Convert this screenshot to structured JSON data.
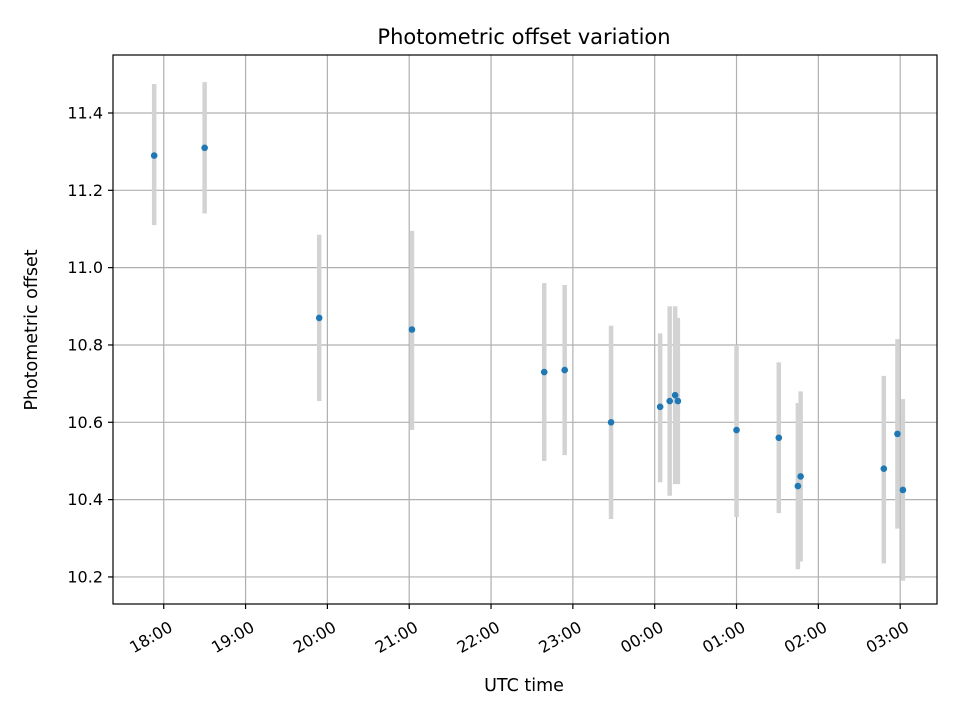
{
  "chart_data": {
    "type": "scatter",
    "title": "Photometric offset variation",
    "xlabel": "UTC time",
    "ylabel": "Photometric offset",
    "x_unit": "hours since 17:00 UTC",
    "xlim": [
      0.38,
      10.45
    ],
    "ylim": [
      10.13,
      11.55
    ],
    "xticks": [
      1,
      2,
      3,
      4,
      5,
      6,
      7,
      8,
      9,
      10
    ],
    "xtick_labels": [
      "18:00",
      "19:00",
      "20:00",
      "21:00",
      "22:00",
      "23:00",
      "00:00",
      "01:00",
      "02:00",
      "03:00"
    ],
    "yticks": [
      10.2,
      10.4,
      10.6,
      10.8,
      11.0,
      11.2,
      11.4
    ],
    "ytick_labels": [
      "10.2",
      "10.4",
      "10.6",
      "10.8",
      "11.0",
      "11.2",
      "11.4"
    ],
    "grid": true,
    "colors": {
      "point": "#1f77b4",
      "errorbar": "#d3d3d3",
      "grid": "#b0b0b0"
    },
    "points": [
      {
        "time": "17:53",
        "y": 11.29,
        "yerr_low": 11.11,
        "yerr_high": 11.475
      },
      {
        "time": "18:30",
        "y": 11.31,
        "yerr_low": 11.14,
        "yerr_high": 11.48
      },
      {
        "time": "19:54",
        "y": 10.87,
        "yerr_low": 10.655,
        "yerr_high": 11.085
      },
      {
        "time": "21:02",
        "y": 10.84,
        "yerr_low": 10.58,
        "yerr_high": 11.095
      },
      {
        "time": "22:39",
        "y": 10.73,
        "yerr_low": 10.5,
        "yerr_high": 10.96
      },
      {
        "time": "22:54",
        "y": 10.735,
        "yerr_low": 10.515,
        "yerr_high": 10.955
      },
      {
        "time": "23:28",
        "y": 10.6,
        "yerr_low": 10.35,
        "yerr_high": 10.85
      },
      {
        "time": "00:04",
        "y": 10.64,
        "yerr_low": 10.445,
        "yerr_high": 10.83
      },
      {
        "time": "00:11",
        "y": 10.655,
        "yerr_low": 10.41,
        "yerr_high": 10.9
      },
      {
        "time": "00:15",
        "y": 10.67,
        "yerr_low": 10.44,
        "yerr_high": 10.9
      },
      {
        "time": "00:17",
        "y": 10.655,
        "yerr_low": 10.44,
        "yerr_high": 10.87
      },
      {
        "time": "01:00",
        "y": 10.58,
        "yerr_low": 10.355,
        "yerr_high": 10.8
      },
      {
        "time": "01:31",
        "y": 10.56,
        "yerr_low": 10.365,
        "yerr_high": 10.755
      },
      {
        "time": "01:45",
        "y": 10.435,
        "yerr_low": 10.22,
        "yerr_high": 10.65
      },
      {
        "time": "01:47",
        "y": 10.46,
        "yerr_low": 10.24,
        "yerr_high": 10.68
      },
      {
        "time": "02:48",
        "y": 10.48,
        "yerr_low": 10.235,
        "yerr_high": 10.72
      },
      {
        "time": "02:58",
        "y": 10.57,
        "yerr_low": 10.325,
        "yerr_high": 10.815
      },
      {
        "time": "03:02",
        "y": 10.425,
        "yerr_low": 10.19,
        "yerr_high": 10.66
      }
    ]
  }
}
